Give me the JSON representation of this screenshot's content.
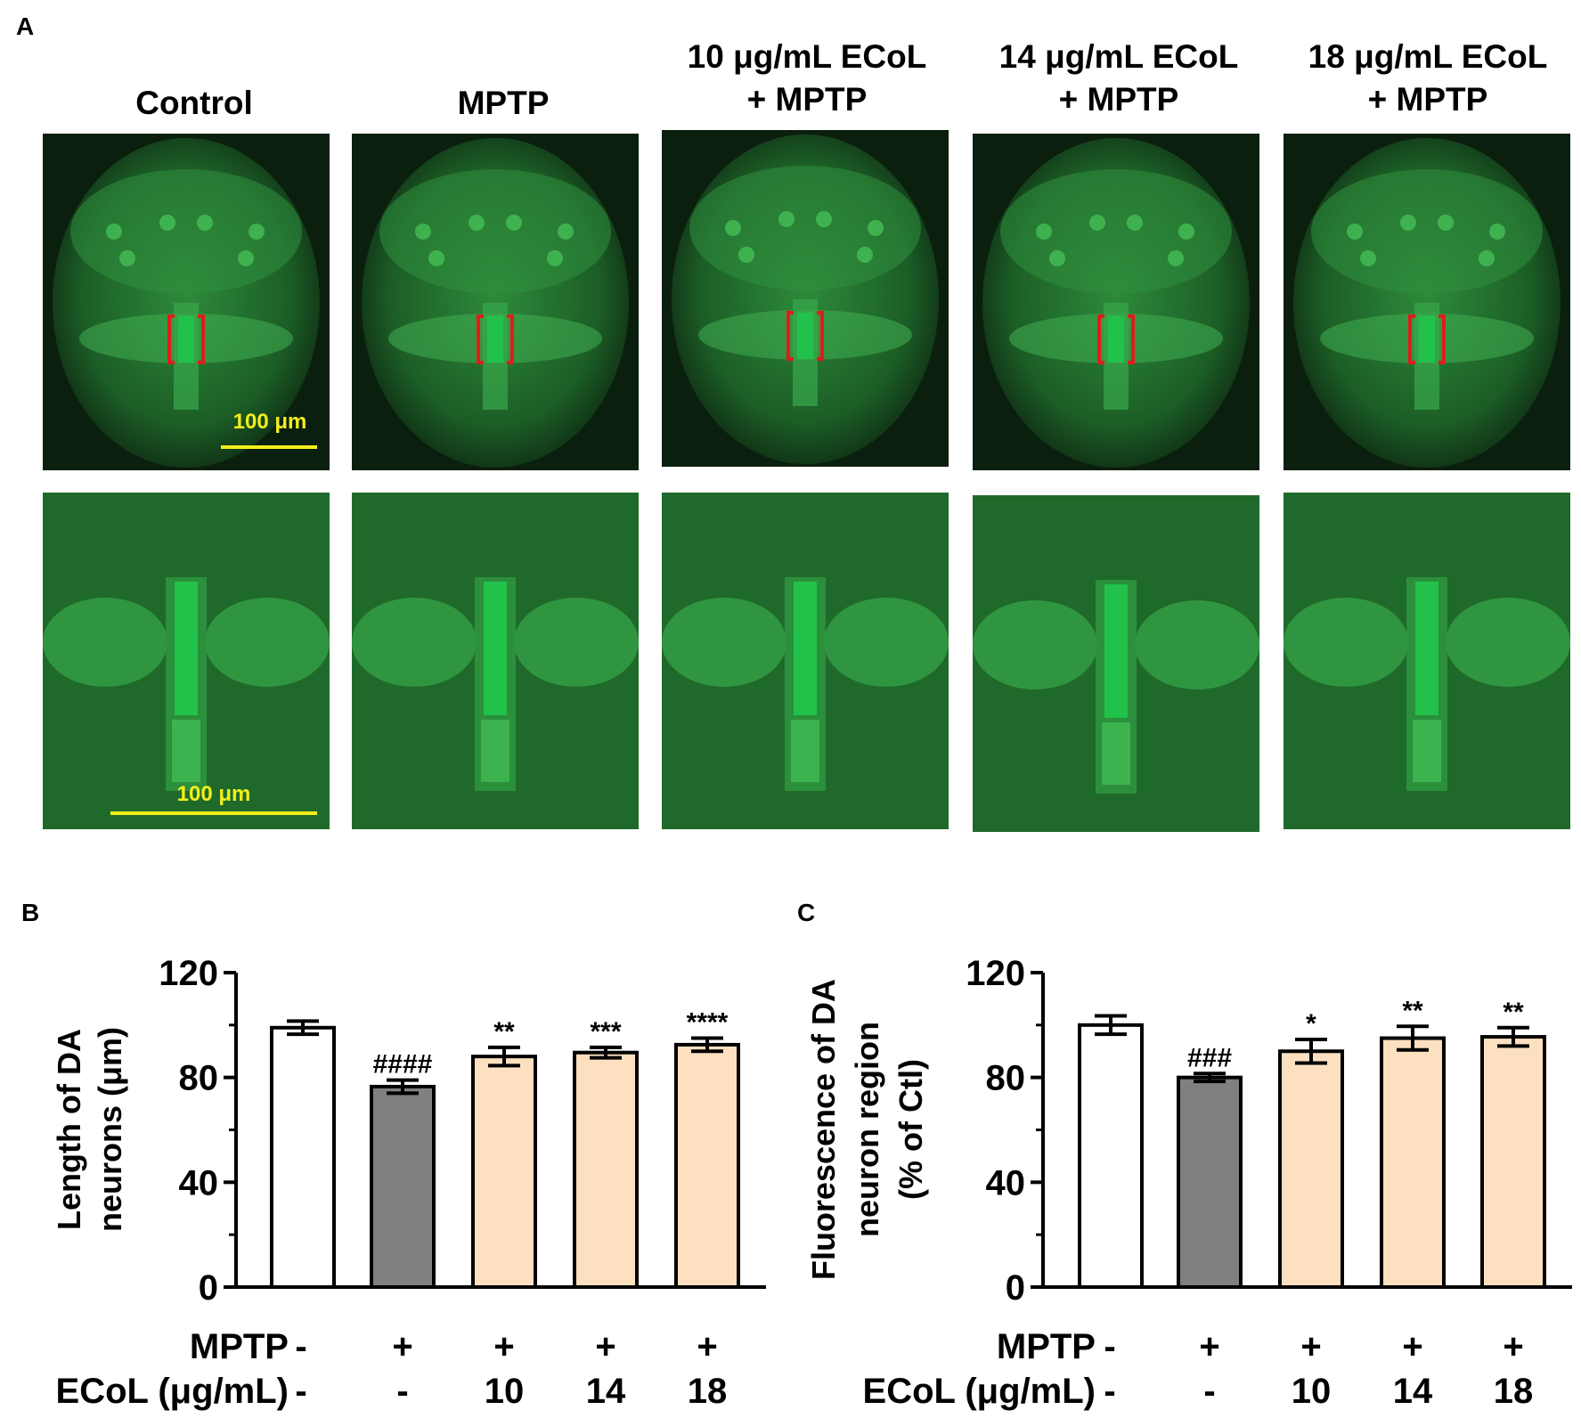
{
  "panel_a": {
    "letter": "A",
    "groups": [
      {
        "line1": "Control",
        "line2": ""
      },
      {
        "line1": "MPTP",
        "line2": ""
      },
      {
        "line1": "10 μg/mL ECoL",
        "line2": "+ MPTP"
      },
      {
        "line1": "14 μg/mL ECoL",
        "line2": "+ MPTP"
      },
      {
        "line1": "18 μg/mL ECoL",
        "line2": "+ MPTP"
      }
    ],
    "scale_bar_top": "100 μm",
    "scale_bar_bottom": "100 μm",
    "colors": {
      "fluorescence": "#22c24a",
      "background": "#0b1f0e",
      "bracket": "#e21b1b",
      "scale": "#f2ee1c"
    }
  },
  "chart_data": [
    {
      "type": "bar",
      "panel": "B",
      "ylabel_line1": "Length of DA",
      "ylabel_line2": "neurons (μm)",
      "categories": [
        "Control",
        "MPTP",
        "10 μg/mL ECoL + MPTP",
        "14 μg/mL ECoL + MPTP",
        "18 μg/mL ECoL + MPTP"
      ],
      "values": [
        99,
        76.5,
        88,
        89.5,
        92.5
      ],
      "errors": [
        2.5,
        2.5,
        3.5,
        2.0,
        2.5
      ],
      "annotations": [
        "",
        "####",
        "**",
        "***",
        "****"
      ],
      "colors": [
        "#ffffff",
        "#808080",
        "#fde0c0",
        "#fde0c0",
        "#fde0c0"
      ],
      "ylim": [
        0,
        120
      ],
      "yticks": [
        "0",
        "40",
        "80",
        "120"
      ],
      "treatment_rows": [
        {
          "label": "MPTP",
          "values": [
            "-",
            "+",
            "+",
            "+",
            "+"
          ]
        },
        {
          "label": "ECoL (μg/mL)",
          "values": [
            "-",
            "-",
            "10",
            "14",
            "18"
          ]
        }
      ]
    },
    {
      "type": "bar",
      "panel": "C",
      "ylabel_line1": "Fluorescence of DA",
      "ylabel_line2": "neuron region",
      "ylabel_line3": "(% of Ctl)",
      "categories": [
        "Control",
        "MPTP",
        "10 μg/mL ECoL + MPTP",
        "14 μg/mL ECoL + MPTP",
        "18 μg/mL ECoL + MPTP"
      ],
      "values": [
        100,
        80,
        90,
        95,
        95.5
      ],
      "errors": [
        3.5,
        1.5,
        4.5,
        4.5,
        3.5
      ],
      "annotations": [
        "",
        "###",
        "*",
        "**",
        "**"
      ],
      "colors": [
        "#ffffff",
        "#808080",
        "#fde0c0",
        "#fde0c0",
        "#fde0c0"
      ],
      "ylim": [
        0,
        120
      ],
      "yticks": [
        "0",
        "40",
        "80",
        "120"
      ],
      "treatment_rows": [
        {
          "label": "MPTP",
          "values": [
            "-",
            "+",
            "+",
            "+",
            "+"
          ]
        },
        {
          "label": "ECoL (μg/mL)",
          "values": [
            "-",
            "-",
            "10",
            "14",
            "18"
          ]
        }
      ]
    }
  ]
}
